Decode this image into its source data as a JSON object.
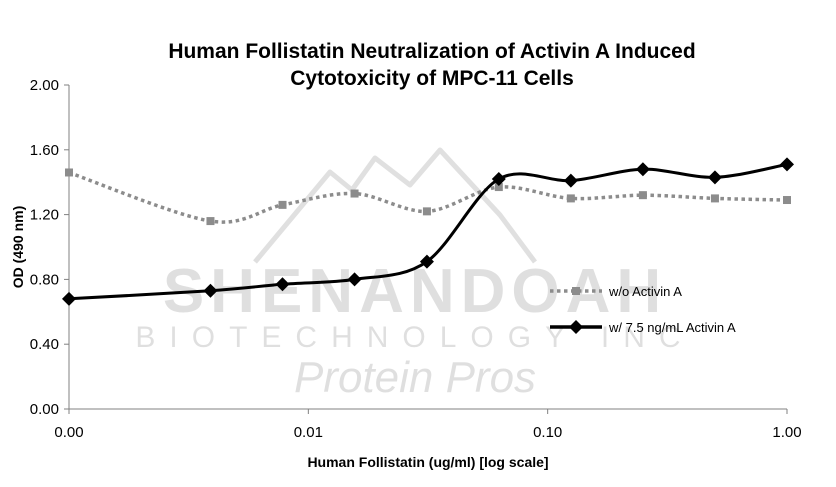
{
  "chart_data": {
    "type": "line",
    "title_lines": [
      "Human Follistatin Neutralization of Activin A Induced",
      "Cytotoxicity of MPC-11 Cells"
    ],
    "xlabel": "Human Follistatin (ug/ml) [log scale]",
    "ylabel": "OD (490 nm)",
    "x_scale": "log",
    "x_ticks": [
      {
        "value": 0.001,
        "label": "0.00"
      },
      {
        "value": 0.01,
        "label": "0.01"
      },
      {
        "value": 0.1,
        "label": "0.10"
      },
      {
        "value": 1.0,
        "label": "1.00"
      }
    ],
    "y_ticks": [
      {
        "value": 0.0,
        "label": "0.00"
      },
      {
        "value": 0.4,
        "label": "0.40"
      },
      {
        "value": 0.8,
        "label": "0.80"
      },
      {
        "value": 1.2,
        "label": "1.20"
      },
      {
        "value": 1.6,
        "label": "1.60"
      },
      {
        "value": 2.0,
        "label": "2.00"
      }
    ],
    "ylim": [
      0,
      2.0
    ],
    "xlim": [
      0.001,
      1.0
    ],
    "grid": false,
    "legend_position": "center-right",
    "x": [
      0.001,
      0.0039,
      0.0078,
      0.0156,
      0.0313,
      0.0625,
      0.125,
      0.25,
      0.5,
      1.0
    ],
    "series": [
      {
        "name": "w/o Activin A",
        "style": "dotted",
        "marker": "square",
        "color": "#8c8c8c",
        "values": [
          1.46,
          1.16,
          1.26,
          1.33,
          1.22,
          1.37,
          1.3,
          1.32,
          1.3,
          1.29
        ]
      },
      {
        "name": "w/ 7.5 ng/mL Activin A",
        "style": "solid",
        "marker": "diamond",
        "color": "#000000",
        "values": [
          0.68,
          0.73,
          0.77,
          0.8,
          0.91,
          1.42,
          1.41,
          1.48,
          1.43,
          1.51
        ]
      }
    ]
  },
  "watermark": {
    "line1": "SHENANDOAH",
    "line2": "BIOTECHNOLOGY INC",
    "line3": "Protein Pros"
  },
  "colors": {
    "axis": "#808080",
    "background": "#ffffff"
  }
}
